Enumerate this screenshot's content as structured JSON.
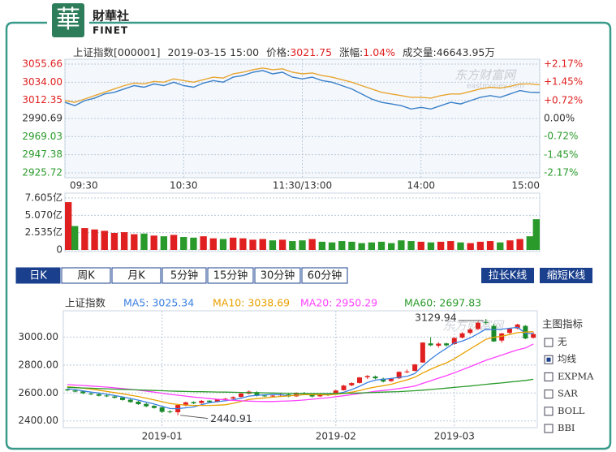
{
  "logo": {
    "mark": "華",
    "name": "財華社",
    "sub": "FINET"
  },
  "info": {
    "name": "上证指数[000001]",
    "time": "2019-03-15 15:00",
    "price_label": "价格:",
    "price": "3021.75",
    "change_label": "涨幅:",
    "change": "1.04%",
    "volume_label": "成交量:",
    "volume": "46643.95万"
  },
  "watermark": [
    "东方财富网",
    "eastmoney.com"
  ],
  "tabs": [
    "日K",
    "周K",
    "月K",
    "5分钟",
    "15分钟",
    "30分钟",
    "60分钟"
  ],
  "selected_tab": 0,
  "buttons": [
    "拉长K线",
    "缩短K线"
  ],
  "indicator_panel": {
    "title": "主图指标",
    "options": [
      "无",
      "均线",
      "EXPMA",
      "SAR",
      "BOLL",
      "BBI"
    ],
    "checked": 1
  },
  "chart_data": [
    {
      "type": "line",
      "x": [
        0,
        5,
        10,
        15,
        20,
        25,
        30,
        35,
        40,
        45,
        50,
        55,
        60,
        65,
        70,
        75,
        80,
        85,
        90,
        95,
        100,
        105,
        110,
        115,
        120,
        125,
        130,
        135,
        140,
        145,
        150,
        155,
        160,
        165,
        170,
        175,
        180,
        185,
        190,
        195,
        200,
        205,
        210,
        215,
        220,
        225,
        230,
        235,
        240
      ],
      "xlim": [
        0,
        240
      ],
      "xticks": [
        {
          "value": 0,
          "label": "09:30"
        },
        {
          "value": 60,
          "label": "10:30"
        },
        {
          "value": 120,
          "label": "11:30/13:00"
        },
        {
          "value": 180,
          "label": "14:00"
        },
        {
          "value": 240,
          "label": "15:00"
        }
      ],
      "ylim": [
        2925.72,
        3055.66
      ],
      "yticks": [
        2925.72,
        2947.38,
        2969.03,
        2990.69,
        3012.35,
        {
          "value": 3034,
          "label": "3034.00"
        },
        3055.66
      ],
      "y2lim": [
        -2.17,
        2.17
      ],
      "y2ticks": [
        {
          "value": -2.17,
          "label": "-2.17%"
        },
        {
          "value": -1.45,
          "label": "-1.45%"
        },
        {
          "value": -0.72,
          "label": "-0.72%"
        },
        {
          "value": 0,
          "label": "0.00%"
        },
        {
          "value": 0.72,
          "label": "+0.72%"
        },
        {
          "value": 1.45,
          "label": "+1.45%"
        },
        {
          "value": 2.17,
          "label": "+2.17%"
        }
      ],
      "up_color": "#e02020",
      "down_color": "#2a9a2a",
      "grid": true,
      "series": [
        {
          "color": "#3a7fc8",
          "values": [
            3010,
            3006,
            3012,
            3015,
            3020,
            3022,
            3026,
            3030,
            3028,
            3032,
            3030,
            3034,
            3030,
            3028,
            3033,
            3036,
            3034,
            3040,
            3042,
            3046,
            3048,
            3044,
            3046,
            3040,
            3038,
            3040,
            3036,
            3034,
            3030,
            3026,
            3020,
            3014,
            3010,
            3008,
            3006,
            3002,
            3004,
            3002,
            3006,
            3010,
            3008,
            3012,
            3016,
            3018,
            3016,
            3020,
            3024,
            3022,
            3021.75
          ]
        },
        {
          "color": "#e8a530",
          "values": [
            3012,
            3010,
            3014,
            3018,
            3022,
            3026,
            3030,
            3033,
            3032,
            3035,
            3034,
            3038,
            3036,
            3034,
            3037,
            3040,
            3039,
            3044,
            3046,
            3049,
            3051,
            3049,
            3050,
            3046,
            3044,
            3045,
            3042,
            3040,
            3037,
            3034,
            3030,
            3026,
            3022,
            3020,
            3018,
            3016,
            3016,
            3015,
            3018,
            3020,
            3020,
            3023,
            3026,
            3028,
            3027,
            3029,
            3032,
            3032,
            3031
          ]
        }
      ],
      "volume": {
        "type": "bar",
        "values": [
          7.0,
          3.5,
          3.2,
          3.0,
          2.8,
          2.5,
          2.6,
          2.3,
          2.4,
          2.1,
          2.0,
          2.2,
          1.9,
          1.8,
          2.0,
          1.7,
          1.6,
          1.8,
          1.7,
          1.5,
          1.6,
          1.4,
          1.5,
          1.3,
          1.4,
          1.6,
          1.2,
          1.1,
          1.3,
          1.2,
          1.0,
          1.1,
          1.2,
          1.0,
          1.4,
          1.3,
          1.2,
          1.1,
          1.2,
          1.3,
          1.1,
          1.0,
          1.2,
          1.3,
          1.1,
          1.4,
          1.6,
          2.0,
          4.5
        ],
        "ylim": [
          0,
          7.605
        ],
        "yticks": [
          0,
          {
            "value": 2.535,
            "label": "2.535亿"
          },
          {
            "value": 5.07,
            "label": "5.070亿"
          },
          {
            "value": 7.605,
            "label": "7.605亿"
          }
        ]
      }
    },
    {
      "type": "candlestick",
      "legend": [
        "上证指数",
        "MA5: 3025.34",
        "MA10: 3038.69",
        "MA20: 2950.29",
        "MA60: 2697.83"
      ],
      "categories": [
        null,
        null,
        null,
        null,
        null,
        null,
        null,
        null,
        null,
        null,
        null,
        null,
        "2019-01",
        null,
        null,
        null,
        null,
        null,
        null,
        null,
        null,
        null,
        null,
        null,
        null,
        null,
        null,
        null,
        null,
        null,
        null,
        null,
        null,
        null,
        "2019-02",
        null,
        null,
        null,
        null,
        null,
        null,
        null,
        null,
        null,
        null,
        null,
        null,
        null,
        null,
        "2019-03",
        null,
        null,
        null,
        null,
        null,
        null,
        null,
        null,
        null,
        null
      ],
      "open": [
        2625,
        2618,
        2612,
        2596,
        2592,
        2582,
        2575,
        2568,
        2552,
        2538,
        2522,
        2508,
        2497,
        2468,
        2462,
        2510,
        2535,
        2528,
        2545,
        2536,
        2555,
        2560,
        2572,
        2595,
        2606,
        2582,
        2578,
        2583,
        2590,
        2576,
        2600,
        2594,
        2576,
        2592,
        2590,
        2620,
        2655,
        2672,
        2712,
        2718,
        2702,
        2685,
        2705,
        2752,
        2758,
        2818,
        2955,
        2938,
        2955,
        2950,
        2996,
        3030,
        3058,
        3108,
        3080,
        2975,
        3030,
        3062,
        3080,
        2995
      ],
      "high": [
        2632,
        2622,
        2615,
        2605,
        2598,
        2590,
        2580,
        2572,
        2560,
        2545,
        2530,
        2512,
        2500,
        2478,
        2518,
        2538,
        2540,
        2550,
        2548,
        2558,
        2565,
        2576,
        2600,
        2618,
        2612,
        2590,
        2588,
        2598,
        2594,
        2605,
        2608,
        2598,
        2598,
        2596,
        2622,
        2658,
        2676,
        2715,
        2728,
        2725,
        2710,
        2708,
        2755,
        2768,
        2808,
        2963,
        2998,
        2962,
        2960,
        2998,
        3035,
        3064,
        3110,
        3129.94,
        3095,
        3030,
        3065,
        3095,
        3085,
        3035
      ],
      "low": [
        2612,
        2604,
        2592,
        2585,
        2575,
        2570,
        2560,
        2545,
        2530,
        2515,
        2498,
        2488,
        2458,
        2455,
        2440.91,
        2505,
        2520,
        2522,
        2530,
        2532,
        2548,
        2555,
        2568,
        2590,
        2575,
        2572,
        2570,
        2578,
        2570,
        2572,
        2590,
        2568,
        2572,
        2578,
        2588,
        2618,
        2648,
        2668,
        2700,
        2698,
        2675,
        2680,
        2700,
        2742,
        2755,
        2816,
        2935,
        2925,
        2932,
        2945,
        2990,
        3020,
        3050,
        3090,
        2965,
        2960,
        3020,
        3055,
        2985,
        2990
      ],
      "close": [
        2620,
        2610,
        2598,
        2590,
        2580,
        2576,
        2566,
        2550,
        2535,
        2520,
        2505,
        2493,
        2465,
        2464,
        2514,
        2533,
        2526,
        2544,
        2535,
        2554,
        2559,
        2570,
        2596,
        2610,
        2580,
        2579,
        2581,
        2591,
        2575,
        2601,
        2596,
        2575,
        2594,
        2585,
        2618,
        2653,
        2671,
        2711,
        2721,
        2705,
        2682,
        2702,
        2751,
        2754,
        2804,
        2961,
        2941,
        2953,
        2941,
        2994,
        3027,
        3054,
        3102,
        3106,
        2969,
        3026,
        3060,
        3090,
        2990,
        3021.75
      ],
      "up_color": "#e02020",
      "down_color": "#1a8a2a",
      "ylim": [
        2352,
        3188
      ],
      "yticks": [
        {
          "value": 2400,
          "label": "2400.00"
        },
        {
          "value": 2600,
          "label": "2600.00"
        },
        {
          "value": 2800,
          "label": "2800.00"
        },
        {
          "value": 3000,
          "label": "3000.00"
        }
      ],
      "grid": true,
      "series": [
        {
          "color": "#3a80e0",
          "values": [
            2630,
            2624,
            2615,
            2606,
            2600,
            2591,
            2582,
            2572,
            2561,
            2549,
            2535,
            2521,
            2504,
            2489,
            2488,
            2494,
            2500,
            2516,
            2530,
            2538,
            2544,
            2552,
            2563,
            2578,
            2583,
            2587,
            2589,
            2588,
            2581,
            2585,
            2589,
            2588,
            2588,
            2590,
            2594,
            2605,
            2624,
            2648,
            2675,
            2692,
            2698,
            2704,
            2712,
            2719,
            2739,
            2794,
            2842,
            2883,
            2920,
            2958,
            2971,
            2994,
            3024,
            3057,
            3052,
            3057,
            3063,
            3070,
            3027,
            3025.34
          ]
        },
        {
          "color": "#e8a000",
          "values": [
            2645,
            2640,
            2634,
            2628,
            2620,
            2611,
            2603,
            2594,
            2584,
            2575,
            2563,
            2551,
            2538,
            2525,
            2518,
            2514,
            2511,
            2511,
            2511,
            2513,
            2516,
            2526,
            2539,
            2554,
            2560,
            2565,
            2570,
            2575,
            2579,
            2584,
            2588,
            2588,
            2588,
            2586,
            2590,
            2597,
            2606,
            2618,
            2632,
            2643,
            2652,
            2662,
            2678,
            2694,
            2713,
            2743,
            2770,
            2794,
            2816,
            2845,
            2880,
            2915,
            2949,
            2984,
            2999,
            3006,
            3018,
            3032,
            3036,
            3038.69
          ]
        },
        {
          "color": "#ff40ff",
          "values": [
            2660,
            2657,
            2654,
            2650,
            2646,
            2642,
            2637,
            2632,
            2626,
            2620,
            2613,
            2606,
            2598,
            2590,
            2584,
            2578,
            2571,
            2566,
            2560,
            2555,
            2551,
            2547,
            2544,
            2542,
            2540,
            2539,
            2539,
            2541,
            2543,
            2546,
            2550,
            2555,
            2561,
            2566,
            2573,
            2580,
            2588,
            2596,
            2604,
            2612,
            2618,
            2624,
            2632,
            2640,
            2650,
            2669,
            2687,
            2706,
            2724,
            2745,
            2766,
            2788,
            2811,
            2834,
            2853,
            2871,
            2890,
            2909,
            2922,
            2950.29
          ]
        },
        {
          "color": "#2a9a2a",
          "values": [
            2640,
            2638,
            2636,
            2634,
            2632,
            2630,
            2628,
            2626,
            2624,
            2622,
            2620,
            2618,
            2616,
            2614,
            2612,
            2611,
            2610,
            2609,
            2608,
            2607,
            2606,
            2605,
            2604,
            2603,
            2602,
            2601,
            2600,
            2599,
            2598,
            2597,
            2596,
            2596,
            2596,
            2596,
            2597,
            2598,
            2599,
            2600,
            2602,
            2604,
            2606,
            2608,
            2610,
            2613,
            2616,
            2620,
            2625,
            2630,
            2635,
            2640,
            2645,
            2650,
            2656,
            2662,
            2667,
            2672,
            2678,
            2684,
            2690,
            2697.83
          ]
        }
      ]
    }
  ]
}
